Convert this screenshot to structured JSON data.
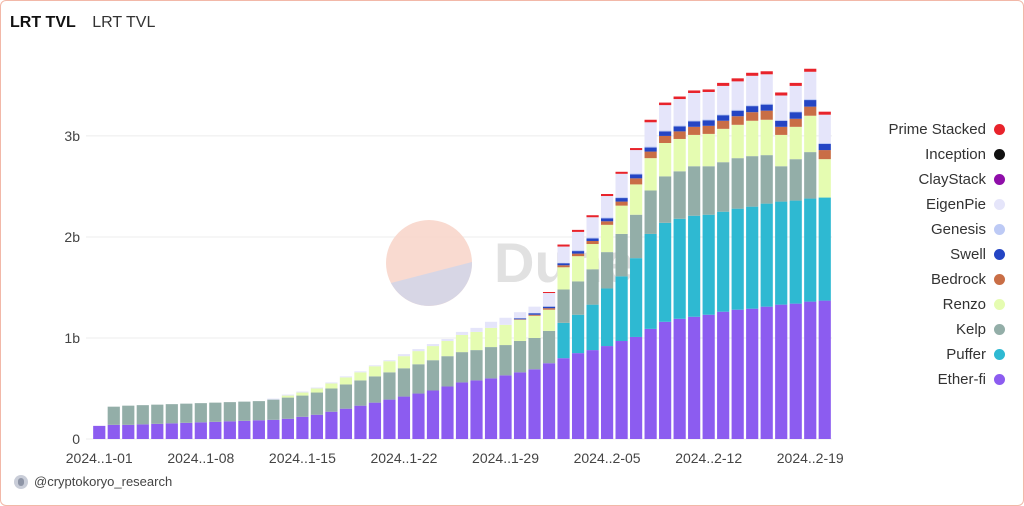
{
  "header": {
    "title": "LRT TVL",
    "subtitle": "LRT TVL"
  },
  "watermark": "Dune",
  "footer": {
    "handle": "@cryptokoryo_research"
  },
  "chart_data": {
    "type": "bar",
    "stacked": true,
    "ylim": [
      0,
      3900
    ],
    "y_ticks": [
      0,
      1000,
      2000,
      3000
    ],
    "y_tick_labels": [
      "0",
      "1b",
      "2b",
      "3b"
    ],
    "x_tick_labels": [
      {
        "index": 0,
        "label": "2024..1-01"
      },
      {
        "index": 7,
        "label": "2024..1-08"
      },
      {
        "index": 14,
        "label": "2024..1-15"
      },
      {
        "index": 21,
        "label": "2024..1-22"
      },
      {
        "index": 28,
        "label": "2024..1-29"
      },
      {
        "index": 35,
        "label": "2024..2-05"
      },
      {
        "index": 42,
        "label": "2024..2-12"
      },
      {
        "index": 49,
        "label": "2024..2-19"
      }
    ],
    "grid": true,
    "legend_position": "right",
    "categories": [
      "2024-01-01",
      "2024-01-02",
      "2024-01-03",
      "2024-01-04",
      "2024-01-05",
      "2024-01-06",
      "2024-01-07",
      "2024-01-08",
      "2024-01-09",
      "2024-01-10",
      "2024-01-11",
      "2024-01-12",
      "2024-01-13",
      "2024-01-14",
      "2024-01-15",
      "2024-01-16",
      "2024-01-17",
      "2024-01-18",
      "2024-01-19",
      "2024-01-20",
      "2024-01-21",
      "2024-01-22",
      "2024-01-23",
      "2024-01-24",
      "2024-01-25",
      "2024-01-26",
      "2024-01-27",
      "2024-01-28",
      "2024-01-29",
      "2024-01-30",
      "2024-01-31",
      "2024-02-01",
      "2024-02-02",
      "2024-02-03",
      "2024-02-04",
      "2024-02-05",
      "2024-02-06",
      "2024-02-07",
      "2024-02-08",
      "2024-02-09",
      "2024-02-10",
      "2024-02-11",
      "2024-02-12",
      "2024-02-13",
      "2024-02-14",
      "2024-02-15",
      "2024-02-16",
      "2024-02-17",
      "2024-02-18",
      "2024-02-19",
      "2024-02-20"
    ],
    "series": [
      {
        "name": "Ether-fi",
        "color": "#8c5cf0",
        "values": [
          130,
          140,
          140,
          145,
          150,
          155,
          160,
          165,
          170,
          175,
          180,
          185,
          190,
          200,
          220,
          240,
          270,
          300,
          330,
          360,
          390,
          420,
          450,
          480,
          520,
          560,
          580,
          600,
          630,
          660,
          690,
          750,
          800,
          850,
          880,
          920,
          970,
          1010,
          1090,
          1160,
          1190,
          1210,
          1230,
          1260,
          1280,
          1290,
          1310,
          1330,
          1340,
          1360,
          1370
        ]
      },
      {
        "name": "Puffer",
        "color": "#2eb9d2",
        "values": [
          0,
          0,
          0,
          0,
          0,
          0,
          0,
          0,
          0,
          0,
          0,
          0,
          0,
          0,
          0,
          0,
          0,
          0,
          0,
          0,
          0,
          0,
          0,
          0,
          0,
          0,
          0,
          0,
          0,
          0,
          0,
          0,
          350,
          380,
          450,
          570,
          640,
          780,
          940,
          980,
          990,
          1000,
          990,
          990,
          1000,
          1010,
          1020,
          1020,
          1020,
          1020,
          1020
        ]
      },
      {
        "name": "Kelp",
        "color": "#93aea8",
        "values": [
          0,
          180,
          190,
          190,
          190,
          190,
          190,
          190,
          190,
          190,
          190,
          190,
          200,
          210,
          210,
          220,
          230,
          240,
          250,
          260,
          270,
          280,
          290,
          300,
          300,
          300,
          300,
          310,
          300,
          310,
          310,
          320,
          330,
          330,
          350,
          360,
          420,
          430,
          430,
          460,
          470,
          490,
          480,
          490,
          500,
          500,
          480,
          350,
          410,
          460,
          0
        ]
      },
      {
        "name": "Renzo",
        "color": "#e5fcb1",
        "values": [
          0,
          0,
          0,
          0,
          0,
          0,
          0,
          0,
          0,
          0,
          0,
          0,
          0,
          20,
          30,
          40,
          50,
          70,
          80,
          100,
          110,
          120,
          130,
          140,
          150,
          170,
          180,
          190,
          200,
          210,
          220,
          210,
          220,
          250,
          250,
          270,
          280,
          300,
          320,
          330,
          320,
          310,
          320,
          330,
          330,
          350,
          350,
          310,
          320,
          360,
          380
        ]
      },
      {
        "name": "Bedrock",
        "color": "#c96e46",
        "values": [
          0,
          0,
          0,
          0,
          0,
          0,
          0,
          0,
          0,
          0,
          0,
          0,
          0,
          0,
          0,
          0,
          0,
          0,
          0,
          0,
          0,
          0,
          0,
          0,
          0,
          0,
          0,
          0,
          0,
          5,
          10,
          15,
          20,
          25,
          30,
          35,
          40,
          60,
          65,
          70,
          75,
          80,
          80,
          80,
          85,
          85,
          90,
          80,
          80,
          90,
          90
        ]
      },
      {
        "name": "Swell",
        "color": "#2445c4",
        "values": [
          0,
          0,
          0,
          0,
          0,
          0,
          0,
          0,
          0,
          0,
          0,
          0,
          0,
          0,
          0,
          0,
          0,
          0,
          0,
          0,
          0,
          0,
          0,
          0,
          0,
          0,
          0,
          0,
          0,
          10,
          15,
          15,
          20,
          25,
          25,
          30,
          35,
          40,
          40,
          45,
          50,
          55,
          55,
          55,
          55,
          60,
          60,
          60,
          65,
          65,
          60
        ]
      },
      {
        "name": "Genesis",
        "color": "#bdcaf5",
        "values": [
          0,
          0,
          0,
          0,
          0,
          0,
          0,
          0,
          0,
          0,
          0,
          0,
          0,
          0,
          0,
          0,
          0,
          0,
          0,
          0,
          0,
          0,
          0,
          0,
          0,
          0,
          0,
          0,
          0,
          0,
          5,
          5,
          5,
          10,
          10,
          10,
          10,
          10,
          10,
          10,
          10,
          10,
          10,
          10,
          10,
          10,
          10,
          10,
          10,
          10,
          10
        ]
      },
      {
        "name": "EigenPie",
        "color": "#e5e5fa",
        "values": [
          0,
          0,
          0,
          0,
          0,
          0,
          0,
          0,
          0,
          0,
          0,
          0,
          10,
          10,
          10,
          10,
          10,
          10,
          10,
          10,
          10,
          20,
          20,
          20,
          20,
          30,
          40,
          60,
          70,
          60,
          60,
          130,
          160,
          180,
          200,
          210,
          230,
          230,
          240,
          250,
          260,
          270,
          270,
          280,
          280,
          290,
          290,
          240,
          250,
          270,
          280
        ]
      },
      {
        "name": "ClayStack",
        "color": "#8f0ea9",
        "values": [
          0,
          0,
          0,
          0,
          0,
          0,
          0,
          0,
          0,
          0,
          0,
          0,
          0,
          0,
          0,
          0,
          0,
          0,
          0,
          0,
          0,
          0,
          0,
          0,
          0,
          0,
          0,
          0,
          0,
          0,
          0,
          0,
          0,
          0,
          0,
          0,
          0,
          0,
          0,
          0,
          0,
          0,
          0,
          0,
          0,
          0,
          0,
          0,
          0,
          0,
          0
        ]
      },
      {
        "name": "Inception",
        "color": "#111111",
        "values": [
          0,
          0,
          0,
          0,
          0,
          0,
          0,
          0,
          0,
          0,
          0,
          0,
          0,
          0,
          0,
          0,
          0,
          0,
          0,
          0,
          0,
          0,
          0,
          0,
          0,
          0,
          0,
          0,
          0,
          0,
          0,
          0,
          0,
          0,
          0,
          0,
          0,
          0,
          0,
          0,
          0,
          0,
          0,
          0,
          0,
          0,
          0,
          0,
          0,
          0,
          0
        ]
      },
      {
        "name": "Prime Stacked",
        "color": "#e8232b",
        "values": [
          0,
          0,
          0,
          0,
          0,
          0,
          0,
          0,
          0,
          0,
          0,
          0,
          0,
          0,
          0,
          0,
          0,
          0,
          0,
          0,
          0,
          0,
          0,
          0,
          0,
          0,
          0,
          0,
          0,
          0,
          0,
          10,
          20,
          20,
          20,
          20,
          20,
          20,
          25,
          25,
          25,
          25,
          25,
          30,
          30,
          30,
          30,
          30,
          30,
          30,
          30
        ]
      }
    ]
  }
}
